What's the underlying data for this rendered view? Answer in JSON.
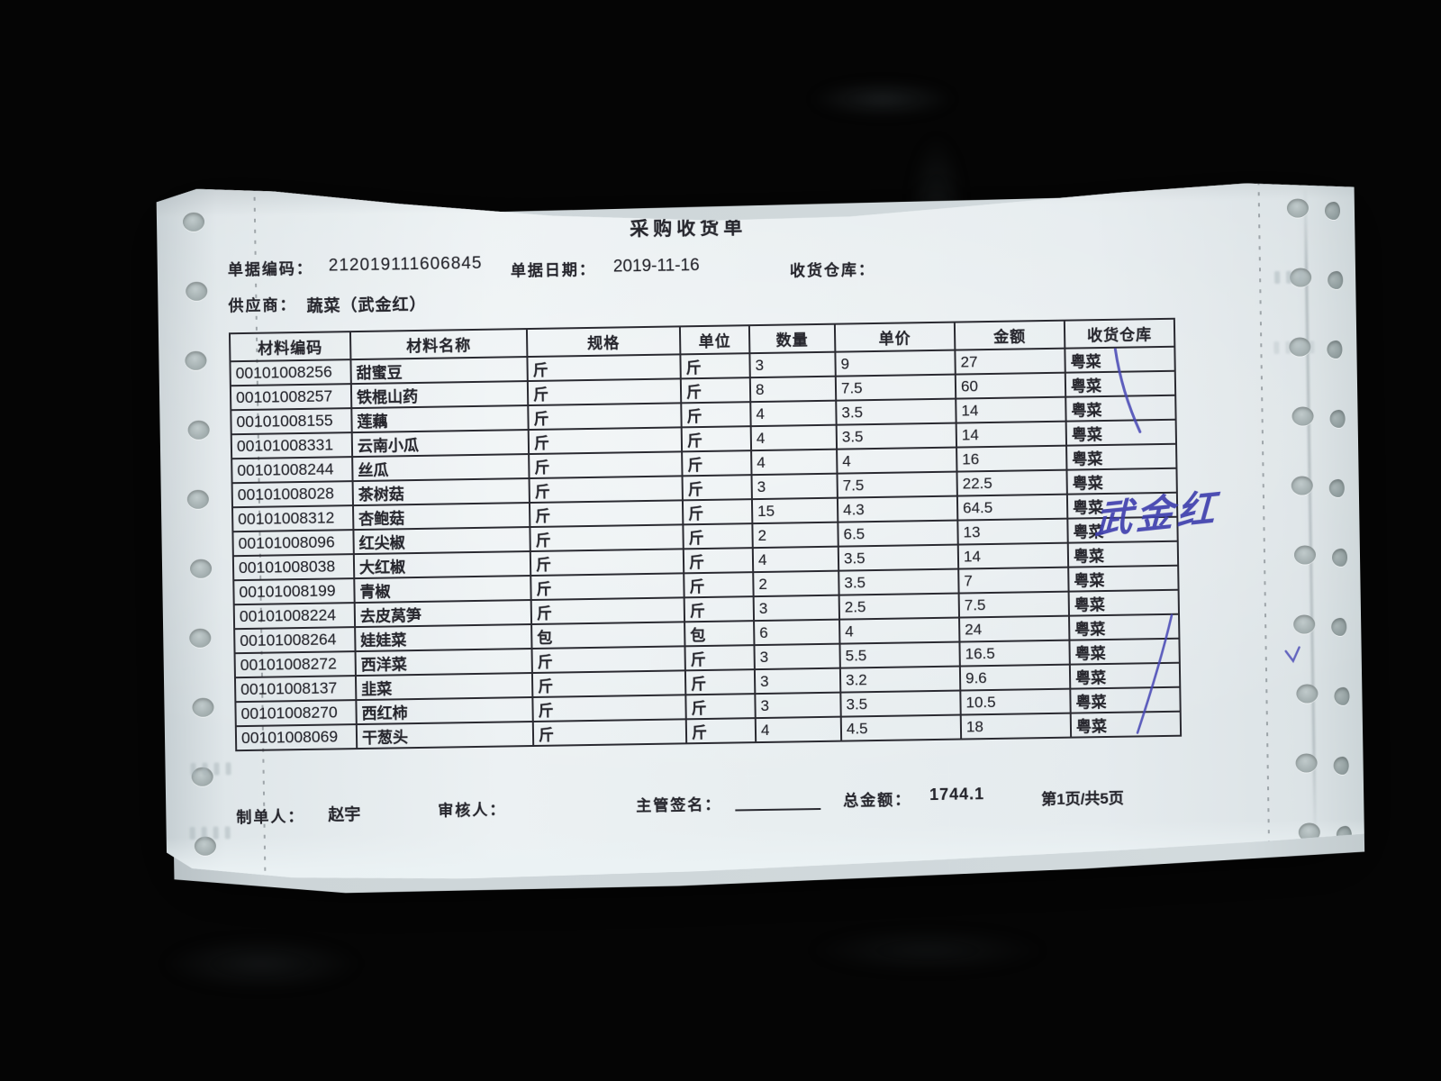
{
  "document": {
    "title": "采购收货单",
    "doc_code_label": "单据编码：",
    "doc_code": "212019111606845",
    "doc_date_label": "单据日期：",
    "doc_date": "2019-11-16",
    "warehouse_label": "收货仓库：",
    "warehouse_value": "",
    "supplier_label": "供应商：",
    "supplier": "蔬菜（武金红）"
  },
  "table": {
    "headers": [
      "材料编码",
      "材料名称",
      "规格",
      "单位",
      "数量",
      "单价",
      "金额",
      "收货仓库"
    ],
    "rows": [
      [
        "00101008256",
        "甜蜜豆",
        "斤",
        "斤",
        "3",
        "9",
        "27",
        "粤菜"
      ],
      [
        "00101008257",
        "铁棍山药",
        "斤",
        "斤",
        "8",
        "7.5",
        "60",
        "粤菜"
      ],
      [
        "00101008155",
        "莲藕",
        "斤",
        "斤",
        "4",
        "3.5",
        "14",
        "粤菜"
      ],
      [
        "00101008331",
        "云南小瓜",
        "斤",
        "斤",
        "4",
        "3.5",
        "14",
        "粤菜"
      ],
      [
        "00101008244",
        "丝瓜",
        "斤",
        "斤",
        "4",
        "4",
        "16",
        "粤菜"
      ],
      [
        "00101008028",
        "茶树菇",
        "斤",
        "斤",
        "3",
        "7.5",
        "22.5",
        "粤菜"
      ],
      [
        "00101008312",
        "杏鲍菇",
        "斤",
        "斤",
        "15",
        "4.3",
        "64.5",
        "粤菜"
      ],
      [
        "00101008096",
        "红尖椒",
        "斤",
        "斤",
        "2",
        "6.5",
        "13",
        "粤菜"
      ],
      [
        "00101008038",
        "大红椒",
        "斤",
        "斤",
        "4",
        "3.5",
        "14",
        "粤菜"
      ],
      [
        "00101008199",
        "青椒",
        "斤",
        "斤",
        "2",
        "3.5",
        "7",
        "粤菜"
      ],
      [
        "00101008224",
        "去皮莴笋",
        "斤",
        "斤",
        "3",
        "2.5",
        "7.5",
        "粤菜"
      ],
      [
        "00101008264",
        "娃娃菜",
        "包",
        "包",
        "6",
        "4",
        "24",
        "粤菜"
      ],
      [
        "00101008272",
        "西洋菜",
        "斤",
        "斤",
        "3",
        "5.5",
        "16.5",
        "粤菜"
      ],
      [
        "00101008137",
        "韭菜",
        "斤",
        "斤",
        "3",
        "3.2",
        "9.6",
        "粤菜"
      ],
      [
        "00101008270",
        "西红柿",
        "斤",
        "斤",
        "3",
        "3.5",
        "10.5",
        "粤菜"
      ],
      [
        "00101008069",
        "干葱头",
        "斤",
        "斤",
        "4",
        "4.5",
        "18",
        "粤菜"
      ]
    ]
  },
  "footer": {
    "preparer_label": "制单人：",
    "preparer": "赵宇",
    "reviewer_label": "审核人：",
    "reviewer": "",
    "supervisor_label": "主管签名：",
    "total_label": "总金额：",
    "total": "1744.1",
    "page_info": "第1页/共5页"
  },
  "annotations": {
    "handwritten_signature": "武金红",
    "ink_color": "#4040ae"
  },
  "colors": {
    "paper": "#e7edf0",
    "ink": "#26262d",
    "pen": "#4040ae",
    "background": "#050505"
  }
}
